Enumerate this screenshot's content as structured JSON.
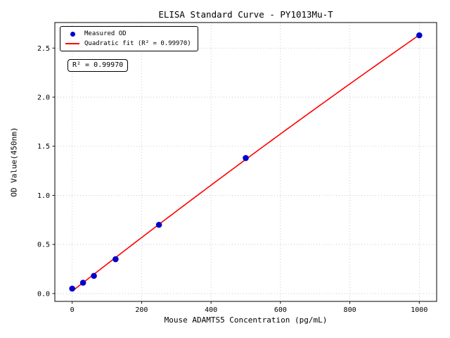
{
  "figure": {
    "background": "#ffffff"
  },
  "chart_data": {
    "type": "scatter",
    "title": "ELISA Standard Curve - PY1013Mu-T",
    "xlabel": "Mouse ADAMTS5 Concentration (pg/mL)",
    "ylabel": "OD Value(450nm)",
    "series": [
      {
        "name": "Measured OD",
        "type": "scatter",
        "color": "#0000cd",
        "x": [
          0,
          31.25,
          62.5,
          125,
          250,
          500,
          1000
        ],
        "y": [
          0.05,
          0.11,
          0.18,
          0.35,
          0.7,
          1.38,
          2.63
        ]
      },
      {
        "name": "Quadratic fit (R² = 0.99970)",
        "type": "line",
        "color": "#ff0000",
        "fit": "quadratic",
        "r_squared": 0.9997
      }
    ],
    "xlim": [
      -50,
      1050
    ],
    "ylim": [
      -0.08,
      2.76
    ],
    "xticks": [
      0,
      200,
      400,
      600,
      800,
      1000
    ],
    "xtick_labels": [
      "0",
      "200",
      "400",
      "600",
      "800",
      "1000"
    ],
    "yticks": [
      0,
      0.5,
      1.0,
      1.5,
      2.0,
      2.5
    ],
    "ytick_labels": [
      "0.0",
      "0.5",
      "1.0",
      "1.5",
      "2.0",
      "2.5"
    ],
    "grid": true,
    "grid_color": "#b5b5b5",
    "axis_color": "#000000",
    "legend_position": "upper-left",
    "annotation": "R² = 0.99970"
  }
}
